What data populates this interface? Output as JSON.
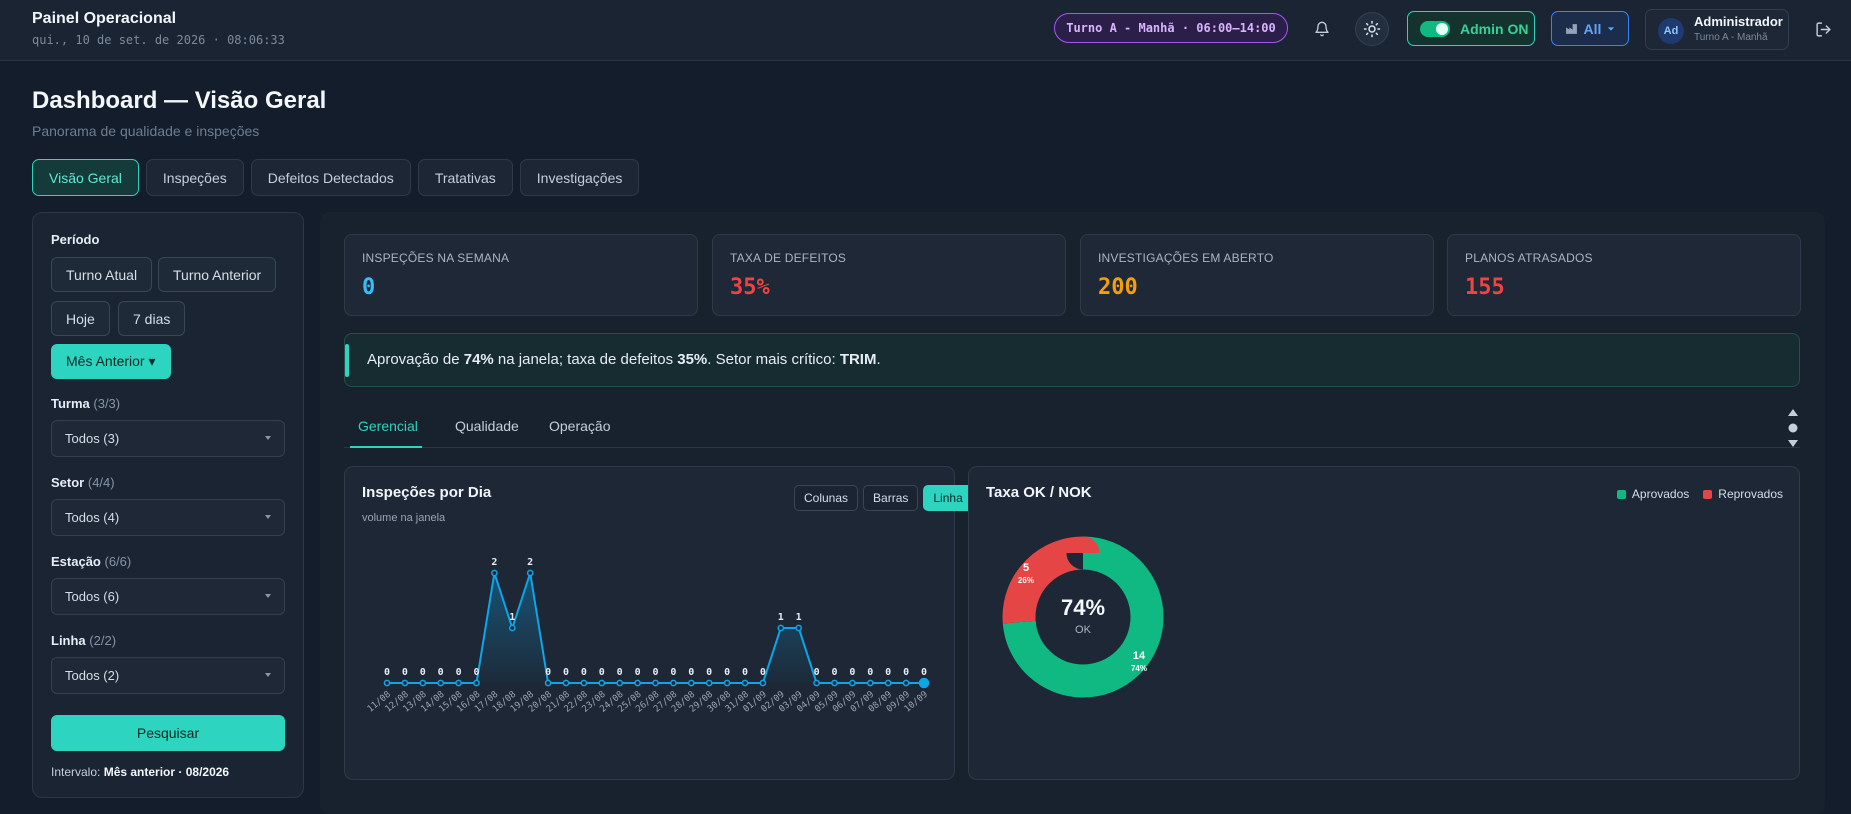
{
  "header": {
    "title": "Painel Operacional",
    "datetime": "qui., 10 de set. de 2026 · 08:06:33",
    "shift_badge": "Turno A - Manhã · 06:00–14:00",
    "admin_label": "Admin ON",
    "filter_all_label": "All",
    "user_initials": "Ad",
    "user_name": "Administrador",
    "user_shift": "Turno A - Manhã"
  },
  "page": {
    "title": "Dashboard — Visão Geral",
    "subtitle": "Panorama de qualidade e inspeções",
    "tabs": [
      "Visão Geral",
      "Inspeções",
      "Defeitos Detectados",
      "Tratativas",
      "Investigações"
    ]
  },
  "sidebar": {
    "period_label": "Período",
    "period_chips": [
      "Turno Atual",
      "Turno Anterior",
      "Hoje",
      "7 dias",
      "Mês Anterior ▾"
    ],
    "filters": [
      {
        "label": "Turma",
        "count": "(3/3)",
        "value": "Todos (3)"
      },
      {
        "label": "Setor",
        "count": "(4/4)",
        "value": "Todos (4)"
      },
      {
        "label": "Estação",
        "count": "(6/6)",
        "value": "Todos (6)"
      },
      {
        "label": "Linha",
        "count": "(2/2)",
        "value": "Todos (2)"
      }
    ],
    "search_label": "Pesquisar",
    "interval_prefix": "Intervalo:",
    "interval_value": "Mês anterior · 08/2026"
  },
  "kpis": [
    {
      "label": "INSPEÇÕES NA SEMANA",
      "value": "0",
      "color": "#38bdf8"
    },
    {
      "label": "TAXA DE DEFEITOS",
      "value": "35%",
      "color": "#ef4444"
    },
    {
      "label": "INVESTIGAÇÕES EM ABERTO",
      "value": "200",
      "color": "#f59e0b"
    },
    {
      "label": "PLANOS ATRASADOS",
      "value": "155",
      "color": "#ef4444"
    }
  ],
  "insight": {
    "p1": "Aprovação de ",
    "approval": "74%",
    "p2": " na janela; taxa de defeitos ",
    "defects": "35%",
    "p3": ". Setor mais crítico: ",
    "sector": "TRIM",
    "p4": "."
  },
  "subtabs": [
    "Gerencial",
    "Qualidade",
    "Operação"
  ],
  "line_card": {
    "title": "Inspeções por Dia",
    "subtitle": "volume na janela",
    "toggles": [
      "Colunas",
      "Barras",
      "Linha"
    ]
  },
  "donut_card": {
    "title": "Taxa OK / NOK",
    "legend": [
      "Aprovados",
      "Reprovados"
    ],
    "center_value": "74%",
    "center_label": "OK",
    "ok_count": "14",
    "ok_pct": "74%",
    "nok_count": "5",
    "nok_pct": "26%"
  },
  "chart_data": [
    {
      "type": "line",
      "title": "Inspeções por Dia",
      "subtitle": "volume na janela",
      "categories": [
        "11/08",
        "12/08",
        "13/08",
        "14/08",
        "15/08",
        "16/08",
        "17/08",
        "18/08",
        "19/08",
        "20/08",
        "21/08",
        "22/08",
        "23/08",
        "24/08",
        "25/08",
        "26/08",
        "27/08",
        "28/08",
        "29/08",
        "30/08",
        "31/08",
        "01/09",
        "02/09",
        "03/09",
        "04/09",
        "05/09",
        "06/09",
        "07/09",
        "08/09",
        "09/09",
        "10/09"
      ],
      "values": [
        0,
        0,
        0,
        0,
        0,
        0,
        2,
        1,
        2,
        0,
        0,
        0,
        0,
        0,
        0,
        0,
        0,
        0,
        0,
        0,
        0,
        0,
        1,
        1,
        0,
        0,
        0,
        0,
        0,
        0,
        0
      ],
      "ylim": [
        0,
        2
      ],
      "grid": false,
      "color": "#0ea5e9"
    },
    {
      "type": "pie",
      "title": "Taxa OK / NOK",
      "labels": [
        "Aprovados",
        "Reprovados"
      ],
      "values": [
        14,
        5
      ],
      "percent": [
        74,
        26
      ],
      "colors": [
        "#10b981",
        "#e64545"
      ],
      "legend": "top-right"
    }
  ]
}
